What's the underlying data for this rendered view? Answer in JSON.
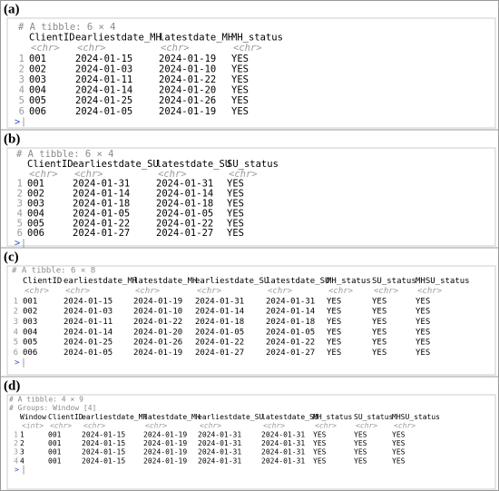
{
  "panels": [
    {
      "label": "(a)",
      "header": [
        "# A tibble: 6 × 4"
      ],
      "columns": [
        "ClientID",
        "earliestdate_MH",
        "latestdate_MH",
        "MH_status"
      ],
      "types": [
        "<chr>",
        "<chr>",
        "<chr>",
        "<chr>"
      ],
      "row_numbers": [
        "1",
        "2",
        "3",
        "4",
        "5",
        "6"
      ],
      "rows": [
        [
          "001",
          "2024-01-15",
          "2024-01-19",
          "YES"
        ],
        [
          "002",
          "2024-01-03",
          "2024-01-10",
          "YES"
        ],
        [
          "003",
          "2024-01-11",
          "2024-01-22",
          "YES"
        ],
        [
          "004",
          "2024-01-14",
          "2024-01-20",
          "YES"
        ],
        [
          "005",
          "2024-01-25",
          "2024-01-26",
          "YES"
        ],
        [
          "006",
          "2024-01-05",
          "2024-01-19",
          "YES"
        ]
      ],
      "prompt": ">"
    },
    {
      "label": "(b)",
      "header": [
        "# A tibble: 6 × 4"
      ],
      "columns": [
        "ClientID",
        "earliestdate_SU",
        "latestdate_SU",
        "SU_status"
      ],
      "types": [
        "<chr>",
        "<chr>",
        "<chr>",
        "<chr>"
      ],
      "row_numbers": [
        "1",
        "2",
        "3",
        "4",
        "5",
        "6"
      ],
      "rows": [
        [
          "001",
          "2024-01-31",
          "2024-01-31",
          "YES"
        ],
        [
          "002",
          "2024-01-14",
          "2024-01-14",
          "YES"
        ],
        [
          "003",
          "2024-01-18",
          "2024-01-18",
          "YES"
        ],
        [
          "004",
          "2024-01-05",
          "2024-01-05",
          "YES"
        ],
        [
          "005",
          "2024-01-22",
          "2024-01-22",
          "YES"
        ],
        [
          "006",
          "2024-01-27",
          "2024-01-27",
          "YES"
        ]
      ],
      "prompt": ">"
    },
    {
      "label": "(c)",
      "header": [
        "# A tibble: 6 × 8"
      ],
      "columns": [
        "ClientID",
        "earliestdate_MH",
        "latestdate_MH",
        "earliestdate_SU",
        "latestdate_SU",
        "MH_status",
        "SU_status",
        "MHSU_status"
      ],
      "types": [
        "<chr>",
        "<chr>",
        "<chr>",
        "<chr>",
        "<chr>",
        "<chr>",
        "<chr>",
        "<chr>"
      ],
      "row_numbers": [
        "1",
        "2",
        "3",
        "4",
        "5",
        "6"
      ],
      "rows": [
        [
          "001",
          "2024-01-15",
          "2024-01-19",
          "2024-01-31",
          "2024-01-31",
          "YES",
          "YES",
          "YES"
        ],
        [
          "002",
          "2024-01-03",
          "2024-01-10",
          "2024-01-14",
          "2024-01-14",
          "YES",
          "YES",
          "YES"
        ],
        [
          "003",
          "2024-01-11",
          "2024-01-22",
          "2024-01-18",
          "2024-01-18",
          "YES",
          "YES",
          "YES"
        ],
        [
          "004",
          "2024-01-14",
          "2024-01-20",
          "2024-01-05",
          "2024-01-05",
          "YES",
          "YES",
          "YES"
        ],
        [
          "005",
          "2024-01-25",
          "2024-01-26",
          "2024-01-22",
          "2024-01-22",
          "YES",
          "YES",
          "YES"
        ],
        [
          "006",
          "2024-01-05",
          "2024-01-19",
          "2024-01-27",
          "2024-01-27",
          "YES",
          "YES",
          "YES"
        ]
      ],
      "prompt": ">"
    },
    {
      "label": "(d)",
      "header": [
        "# A tibble: 4 × 9",
        "# Groups:   Window [4]"
      ],
      "columns": [
        "Window",
        "ClientID",
        "earliestdate_MH",
        "latestdate_MH",
        "earliestdate_SU",
        "latestdate_SU",
        "MH_status",
        "SU_status",
        "MHSU_status"
      ],
      "types": [
        "<int>",
        "<chr>",
        "<chr>",
        "<chr>",
        "<chr>",
        "<chr>",
        "<chr>",
        "<chr>",
        "<chr>"
      ],
      "row_numbers": [
        "1",
        "2",
        "3",
        "4"
      ],
      "rows": [
        [
          "1",
          "001",
          "2024-01-15",
          "2024-01-19",
          "2024-01-31",
          "2024-01-31",
          "YES",
          "YES",
          "YES"
        ],
        [
          "2",
          "001",
          "2024-01-15",
          "2024-01-19",
          "2024-01-31",
          "2024-01-31",
          "YES",
          "YES",
          "YES"
        ],
        [
          "3",
          "001",
          "2024-01-15",
          "2024-01-19",
          "2024-01-31",
          "2024-01-31",
          "YES",
          "YES",
          "YES"
        ],
        [
          "4",
          "001",
          "2024-01-15",
          "2024-01-19",
          "2024-01-31",
          "2024-01-31",
          "YES",
          "YES",
          "YES"
        ]
      ],
      "prompt": ">"
    }
  ]
}
